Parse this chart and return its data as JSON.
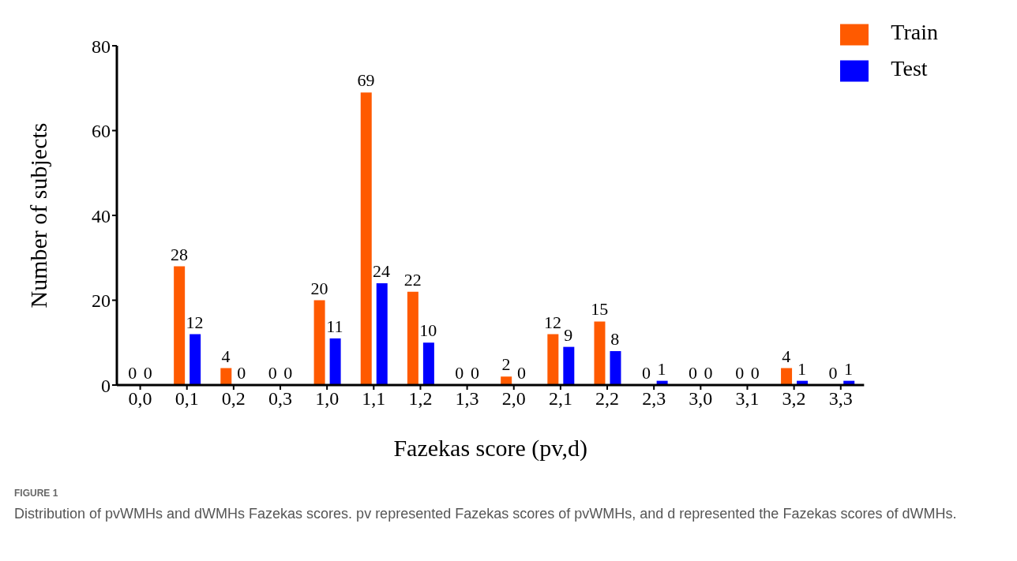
{
  "chart_data": {
    "type": "bar",
    "xlabel": "Fazekas score (pv,d)",
    "ylabel": "Number of subjects",
    "categories": [
      "0,0",
      "0,1",
      "0,2",
      "0,3",
      "1,0",
      "1,1",
      "1,2",
      "1,3",
      "2,0",
      "2,1",
      "2,2",
      "2,3",
      "3,0",
      "3,1",
      "3,2",
      "3,3"
    ],
    "series": [
      {
        "name": "Train",
        "color": "#ff5a00",
        "values": [
          0,
          28,
          4,
          0,
          20,
          69,
          22,
          0,
          2,
          12,
          15,
          0,
          0,
          0,
          4,
          0
        ]
      },
      {
        "name": "Test",
        "color": "#0000ff",
        "values": [
          0,
          12,
          0,
          0,
          11,
          24,
          10,
          0,
          0,
          9,
          8,
          1,
          0,
          0,
          1,
          1
        ]
      }
    ],
    "ylim": [
      0,
      80
    ],
    "yticks": [
      0,
      20,
      40,
      60,
      80
    ],
    "grid": false,
    "legend": "top right",
    "data_labels": true,
    "annotations": [
      "FIGURE 1",
      "Distribution of pvWMHs and dWMHs Fazekas scores. pv represented Fazekas scores of pvWMHs, and d represented the Fazekas scores of dWMHs."
    ]
  }
}
